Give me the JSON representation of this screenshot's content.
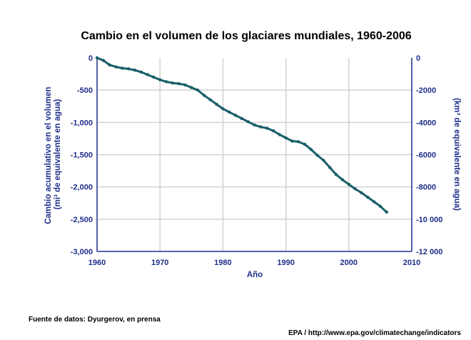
{
  "chart_data": {
    "type": "line",
    "title": "Cambio en el volumen de los glaciares mundiales, 1960-2006",
    "xlabel": "Año",
    "ylabel_left": [
      "Cambio acumulativo en el volumen",
      "(mi³ de equivalente en agua)"
    ],
    "ylabel_right": "(km³ de equivalente en agua)",
    "xlim": [
      1960,
      2010
    ],
    "ylim": [
      -3000,
      0
    ],
    "ylim_right": [
      -12000,
      0
    ],
    "grid": true,
    "x_ticks": [
      "1960",
      "1970",
      "1980",
      "1990",
      "2000",
      "2010"
    ],
    "y_ticks_left": [
      "0",
      "-500",
      "-1,000",
      "-1,500",
      "-2,000",
      "-2,500",
      "-3,000"
    ],
    "y_ticks_right": [
      "0",
      "-2000",
      "-4000",
      "-6000",
      "-8000",
      "-10 000",
      "-12 000"
    ],
    "series": [
      {
        "color": "#1a5f6a",
        "x": [
          1960,
          1961,
          1962,
          1963,
          1964,
          1965,
          1966,
          1967,
          1968,
          1969,
          1970,
          1971,
          1972,
          1973,
          1974,
          1975,
          1976,
          1977,
          1978,
          1979,
          1980,
          1981,
          1982,
          1983,
          1984,
          1985,
          1986,
          1987,
          1988,
          1989,
          1990,
          1991,
          1992,
          1993,
          1994,
          1995,
          1996,
          1997,
          1998,
          1999,
          2000,
          2001,
          2002,
          2003,
          2004,
          2005,
          2006
        ],
        "y": [
          0,
          -40,
          -110,
          -140,
          -160,
          -170,
          -190,
          -220,
          -260,
          -300,
          -340,
          -370,
          -390,
          -400,
          -420,
          -460,
          -500,
          -580,
          -650,
          -720,
          -790,
          -840,
          -890,
          -940,
          -990,
          -1040,
          -1070,
          -1090,
          -1130,
          -1190,
          -1240,
          -1290,
          -1300,
          -1340,
          -1420,
          -1510,
          -1590,
          -1700,
          -1810,
          -1890,
          -1960,
          -2030,
          -2090,
          -2160,
          -2230,
          -2300,
          -2390
        ]
      }
    ]
  },
  "footer": {
    "source": "Fuente de datos: Dyurgerov, en prensa",
    "credit": "EPA / http://www.epa.gov/climatechange/indicators"
  },
  "colors": {
    "axis_text": "#1f2f8a",
    "line": "#1a5f6a",
    "grid": "#d2d2d2"
  }
}
